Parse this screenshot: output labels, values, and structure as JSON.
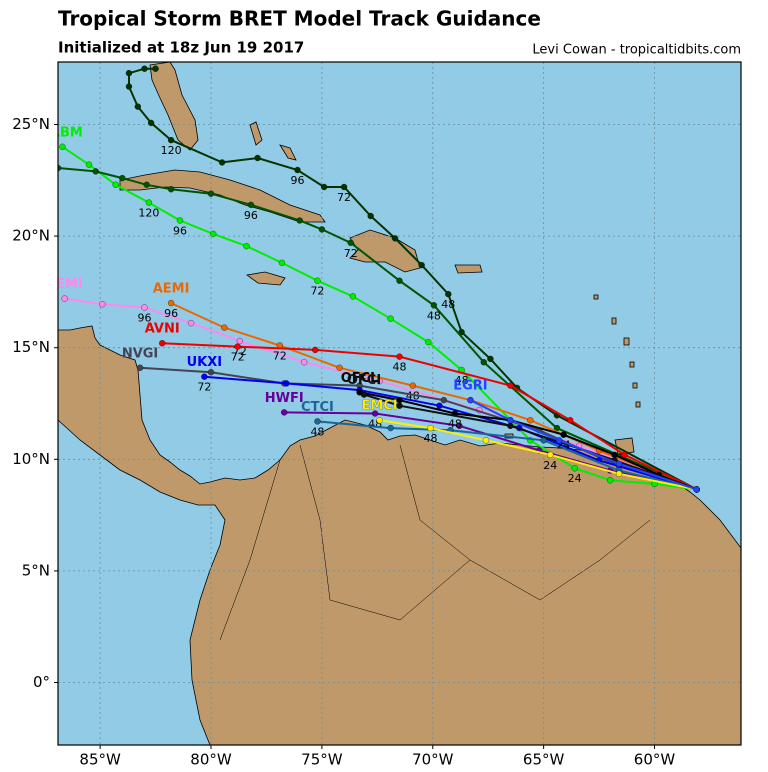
{
  "chart_data": {
    "type": "map",
    "title": "Tropical Storm BRET Model Track Guidance",
    "subtitle": "Initialized at 18z Jun 19 2017",
    "credit": "Levi Cowan - tropicaltidbits.com",
    "xlim": [
      -86.9,
      -56.1
    ],
    "ylim": [
      -2.8,
      27.8
    ],
    "xticks": [
      {
        "value": -85,
        "label": "85°W"
      },
      {
        "value": -80,
        "label": "80°W"
      },
      {
        "value": -75,
        "label": "75°W"
      },
      {
        "value": -70,
        "label": "70°W"
      },
      {
        "value": -65,
        "label": "65°W"
      },
      {
        "value": -60,
        "label": "60°W"
      }
    ],
    "yticks": [
      {
        "value": 0,
        "label": "0°"
      },
      {
        "value": 5,
        "label": "5°N"
      },
      {
        "value": 10,
        "label": "10°N"
      },
      {
        "value": 15,
        "label": "15°N"
      },
      {
        "value": 20,
        "label": "20°N"
      },
      {
        "value": 25,
        "label": "25°N"
      }
    ],
    "grid": true,
    "series": [
      {
        "name": "TABM",
        "color": "#00ee00",
        "x": [
          -58.1,
          -60.0,
          -62.0,
          -63.6,
          -65.6,
          -68.7,
          -70.2,
          -71.9,
          -73.6,
          -75.2,
          -76.8,
          -78.4,
          -79.9,
          -81.4,
          -82.8,
          -84.3,
          -85.5,
          -86.7
        ],
        "values": [
          8.65,
          8.9,
          9.06,
          9.6,
          10.85,
          14.0,
          15.25,
          16.3,
          17.3,
          18.0,
          18.8,
          19.55,
          20.1,
          20.7,
          21.5,
          22.3,
          23.2,
          24.0
        ],
        "point_labels": [
          null,
          null,
          null,
          "24",
          null,
          "48",
          null,
          null,
          null,
          "72",
          null,
          null,
          null,
          "96",
          "120",
          null,
          null,
          null
        ]
      },
      {
        "name": null,
        "color": "#003300",
        "x": [
          -58.1,
          -64.4,
          -66.2,
          -67.4,
          -68.7,
          -69.3,
          -70.5,
          -71.7,
          -72.8,
          -74.0,
          -74.9,
          -76.1,
          -77.9,
          -79.5,
          -81.8,
          -82.7,
          -83.3,
          -83.7,
          -83.7,
          -83.0,
          -82.5
        ],
        "values": [
          8.65,
          11.97,
          13.2,
          14.5,
          15.7,
          17.4,
          18.7,
          19.9,
          20.9,
          22.2,
          22.2,
          22.96,
          23.5,
          23.3,
          24.3,
          25.07,
          25.8,
          26.7,
          27.3,
          27.5,
          27.5
        ],
        "point_labels": [
          null,
          null,
          null,
          null,
          null,
          "48",
          null,
          null,
          null,
          "72",
          null,
          "96",
          null,
          null,
          "120",
          null,
          null,
          null,
          null,
          null,
          null
        ]
      },
      {
        "name": null,
        "color": "#005500",
        "x": [
          -58.1,
          -64.4,
          -67.7,
          -69.95,
          -71.5,
          -73.7,
          -75.0,
          -76.0,
          -78.2,
          -80.0,
          -81.8,
          -82.9,
          -84.0,
          -85.2,
          -86.9
        ],
        "values": [
          8.65,
          11.4,
          14.35,
          16.9,
          18.0,
          19.7,
          20.3,
          20.7,
          21.4,
          21.9,
          22.1,
          22.3,
          22.6,
          22.9,
          23.05
        ],
        "point_labels": [
          null,
          null,
          null,
          "48",
          null,
          "72",
          null,
          null,
          "96",
          null,
          null,
          null,
          null,
          null,
          null
        ]
      },
      {
        "name": "CEMI",
        "color": "#ff88ee",
        "x": [
          -58.1,
          -63.4,
          -67.9,
          -72.4,
          -75.8,
          -78.7,
          -80.9,
          -83.0,
          -84.9,
          -86.6
        ],
        "values": [
          8.65,
          10.6,
          12.2,
          13.5,
          14.35,
          15.3,
          16.1,
          16.8,
          16.95,
          17.2
        ],
        "point_labels": [
          null,
          null,
          null,
          null,
          null,
          "72",
          null,
          "96",
          null,
          null
        ]
      },
      {
        "name": "AEMI",
        "color": "#ee6600",
        "x": [
          -58.1,
          -62.5,
          -65.6,
          -68.3,
          -70.9,
          -74.2,
          -76.9,
          -79.4,
          -81.8
        ],
        "values": [
          8.65,
          10.4,
          11.75,
          12.65,
          13.3,
          14.1,
          15.1,
          15.9,
          17.0
        ],
        "point_labels": [
          null,
          null,
          null,
          null,
          "48",
          null,
          "72",
          null,
          "96"
        ]
      },
      {
        "name": "AVNI",
        "color": "#ee0000",
        "x": [
          -58.1,
          -61.35,
          -63.8,
          -66.5,
          -71.5,
          -75.3,
          -78.8,
          -82.2
        ],
        "values": [
          8.65,
          10.2,
          11.75,
          13.3,
          14.6,
          14.9,
          15.05,
          15.2
        ],
        "point_labels": [
          null,
          null,
          null,
          null,
          "48",
          null,
          "72",
          null
        ]
      },
      {
        "name": "NVGI",
        "color": "#444455",
        "x": [
          -58.1,
          -61.6,
          -65.2,
          -69.5,
          -73.3,
          -76.7,
          -80.0,
          -83.2
        ],
        "values": [
          8.65,
          9.7,
          11.3,
          12.65,
          13.3,
          13.4,
          13.9,
          14.1
        ],
        "point_labels": [
          null,
          null,
          null,
          null,
          null,
          null,
          null,
          null
        ]
      },
      {
        "name": "UKXI",
        "color": "#0000ee",
        "x": [
          -58.1,
          -62.5,
          -66.1,
          -69.7,
          -73.3,
          -76.6,
          -80.3
        ],
        "values": [
          8.65,
          9.95,
          11.4,
          12.4,
          13.1,
          13.4,
          13.7
        ],
        "point_labels": [
          null,
          null,
          null,
          null,
          null,
          null,
          "72"
        ]
      },
      {
        "name": "HWFI",
        "color": "#660099",
        "x": [
          -58.1,
          -62.0,
          -65.2,
          -68.8,
          -72.6,
          -76.7
        ],
        "values": [
          8.65,
          9.5,
          10.4,
          11.5,
          12.05,
          12.1
        ],
        "point_labels": [
          null,
          null,
          null,
          null,
          "48",
          null
        ]
      },
      {
        "name": "CTCI",
        "color": "#1a6699",
        "x": [
          -58.1,
          -61.6,
          -65.0,
          -69.2,
          -71.9,
          -75.2
        ],
        "values": [
          8.65,
          9.5,
          10.85,
          11.3,
          11.4,
          11.7
        ],
        "point_labels": [
          null,
          null,
          null,
          null,
          null,
          "48"
        ]
      },
      {
        "name": "OFCL",
        "color": "#000000",
        "x": [
          -58.1,
          -59.8,
          -61.8,
          -64.1,
          -66.5,
          -69.0,
          -71.5,
          -73.3
        ],
        "values": [
          8.65,
          9.3,
          10.2,
          11.1,
          11.75,
          12.05,
          12.65,
          13.0
        ],
        "point_labels": [
          null,
          null,
          null,
          "24",
          null,
          "48",
          null,
          null
        ]
      },
      {
        "name": "OFCI",
        "color": "#111111",
        "x": [
          -58.1,
          -61.8,
          -66.5,
          -71.5,
          -73.1
        ],
        "values": [
          8.65,
          9.96,
          11.5,
          12.4,
          12.9
        ],
        "point_labels": [
          null,
          null,
          null,
          null,
          null
        ]
      },
      {
        "name": "EMCI",
        "color": "#ffee00",
        "x": [
          -58.1,
          -61.6,
          -64.7,
          -67.6,
          -70.1,
          -72.4
        ],
        "values": [
          8.65,
          9.35,
          10.2,
          10.85,
          11.4,
          11.75
        ],
        "point_labels": [
          null,
          null,
          "24",
          null,
          "48",
          null
        ]
      },
      {
        "name": "EGRI",
        "color": "#2244ff",
        "x": [
          -58.1,
          -61.6,
          -64.3,
          -66.5,
          -68.3
        ],
        "values": [
          8.65,
          9.8,
          10.85,
          11.75,
          12.65
        ],
        "point_labels": [
          null,
          null,
          null,
          null,
          null
        ]
      }
    ]
  }
}
